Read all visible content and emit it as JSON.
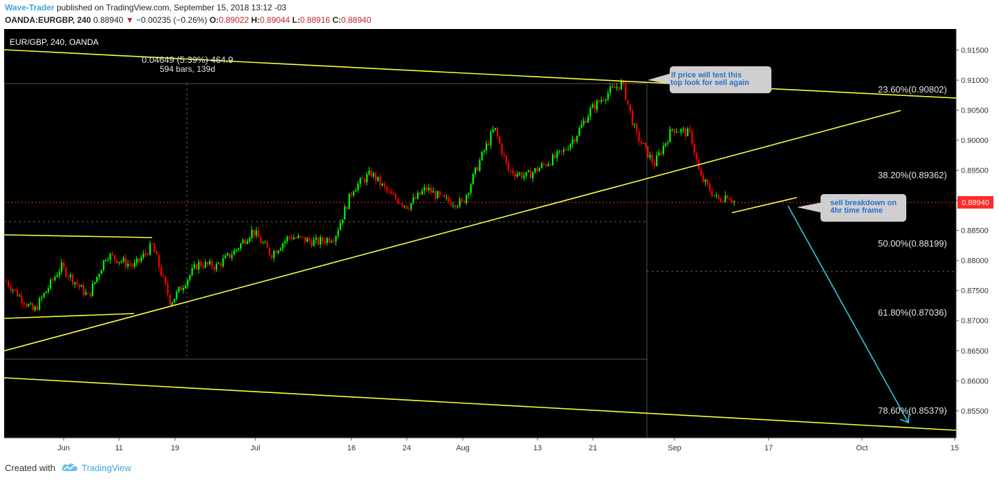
{
  "header": {
    "author": "Wave-Trader",
    "published": "published on TradingView.com, September 15, 2018 13:12 -03",
    "symbol": "OANDA:EURGBP, 240",
    "last": "0.88940",
    "change_arrow": "▼",
    "change": "−0.00235 (−0.26%)",
    "o_label": "O:",
    "o_value": "0.89022",
    "h_label": "H:",
    "h_value": "0.89044",
    "l_label": "L:",
    "l_value": "0.88916",
    "c_label": "C:",
    "c_value": "0.88940"
  },
  "footer": {
    "created_with": "Created with",
    "brand": "TradingView"
  },
  "chart_data": {
    "type": "candlestick",
    "symbol_label": "EUR/GBP, 240, OANDA",
    "ylim": [
      0.8505,
      0.9185
    ],
    "y_ticks": [
      "0.91500",
      "0.91000",
      "0.90500",
      "0.90000",
      "0.89500",
      "0.89000",
      "0.88500",
      "0.88000",
      "0.87500",
      "0.87000",
      "0.86500",
      "0.86000",
      "0.85500"
    ],
    "x_ticks": [
      "Jun",
      "11",
      "19",
      "Jul",
      "16",
      "24",
      "Aug",
      "13",
      "21",
      "Sep",
      "17",
      "Oct",
      "15"
    ],
    "price_series": [
      [
        0,
        0.8765
      ],
      [
        0.03,
        0.8715
      ],
      [
        0.06,
        0.879
      ],
      [
        0.09,
        0.874
      ],
      [
        0.11,
        0.881
      ],
      [
        0.14,
        0.879
      ],
      [
        0.16,
        0.8825
      ],
      [
        0.18,
        0.873
      ],
      [
        0.21,
        0.8795
      ],
      [
        0.23,
        0.879
      ],
      [
        0.25,
        0.8815
      ],
      [
        0.27,
        0.885
      ],
      [
        0.29,
        0.881
      ],
      [
        0.31,
        0.884
      ],
      [
        0.34,
        0.883
      ],
      [
        0.36,
        0.884
      ],
      [
        0.38,
        0.892
      ],
      [
        0.4,
        0.8945
      ],
      [
        0.42,
        0.891
      ],
      [
        0.44,
        0.889
      ],
      [
        0.46,
        0.892
      ],
      [
        0.48,
        0.89
      ],
      [
        0.5,
        0.8895
      ],
      [
        0.52,
        0.897
      ],
      [
        0.535,
        0.902
      ],
      [
        0.55,
        0.895
      ],
      [
        0.57,
        0.894
      ],
      [
        0.59,
        0.896
      ],
      [
        0.61,
        0.898
      ],
      [
        0.625,
        0.901
      ],
      [
        0.64,
        0.905
      ],
      [
        0.66,
        0.908
      ],
      [
        0.675,
        0.9095
      ],
      [
        0.69,
        0.901
      ],
      [
        0.71,
        0.896
      ],
      [
        0.73,
        0.902
      ],
      [
        0.75,
        0.901
      ],
      [
        0.76,
        0.894
      ],
      [
        0.78,
        0.89
      ],
      [
        0.79,
        0.891
      ],
      [
        0.8,
        0.8895
      ]
    ],
    "current_price": "0.88940",
    "measure": {
      "text1": "0.04649 (5.39%) 464.9",
      "text2": "594 bars, 139d"
    },
    "fib_levels": [
      {
        "label": "23.60%(0.90802)",
        "value": 0.90802
      },
      {
        "label": "38.20%(0.89362)",
        "value": 0.89362
      },
      {
        "label": "50.00%(0.88199)",
        "value": 0.88199
      },
      {
        "label": "61.80%(0.87036)",
        "value": 0.87036
      },
      {
        "label": "78.60%(0.85379)",
        "value": 0.85379
      }
    ],
    "annotations": [
      {
        "line1": "If price will test this",
        "line2": "top look for sell again"
      },
      {
        "line1": "sell breakdown on",
        "line2": "4hr time frame"
      }
    ],
    "colors": {
      "background": "#000000",
      "bull": "#00ff00",
      "bear": "#ff0000",
      "trendline": "#ffff3c",
      "target_arrow": "#33ccdd",
      "price_line": "#ff2a2a",
      "price_tag": "#ff2a2a",
      "callout_bg": "#cfcfcf",
      "callout_text": "#2a6fd0"
    }
  }
}
